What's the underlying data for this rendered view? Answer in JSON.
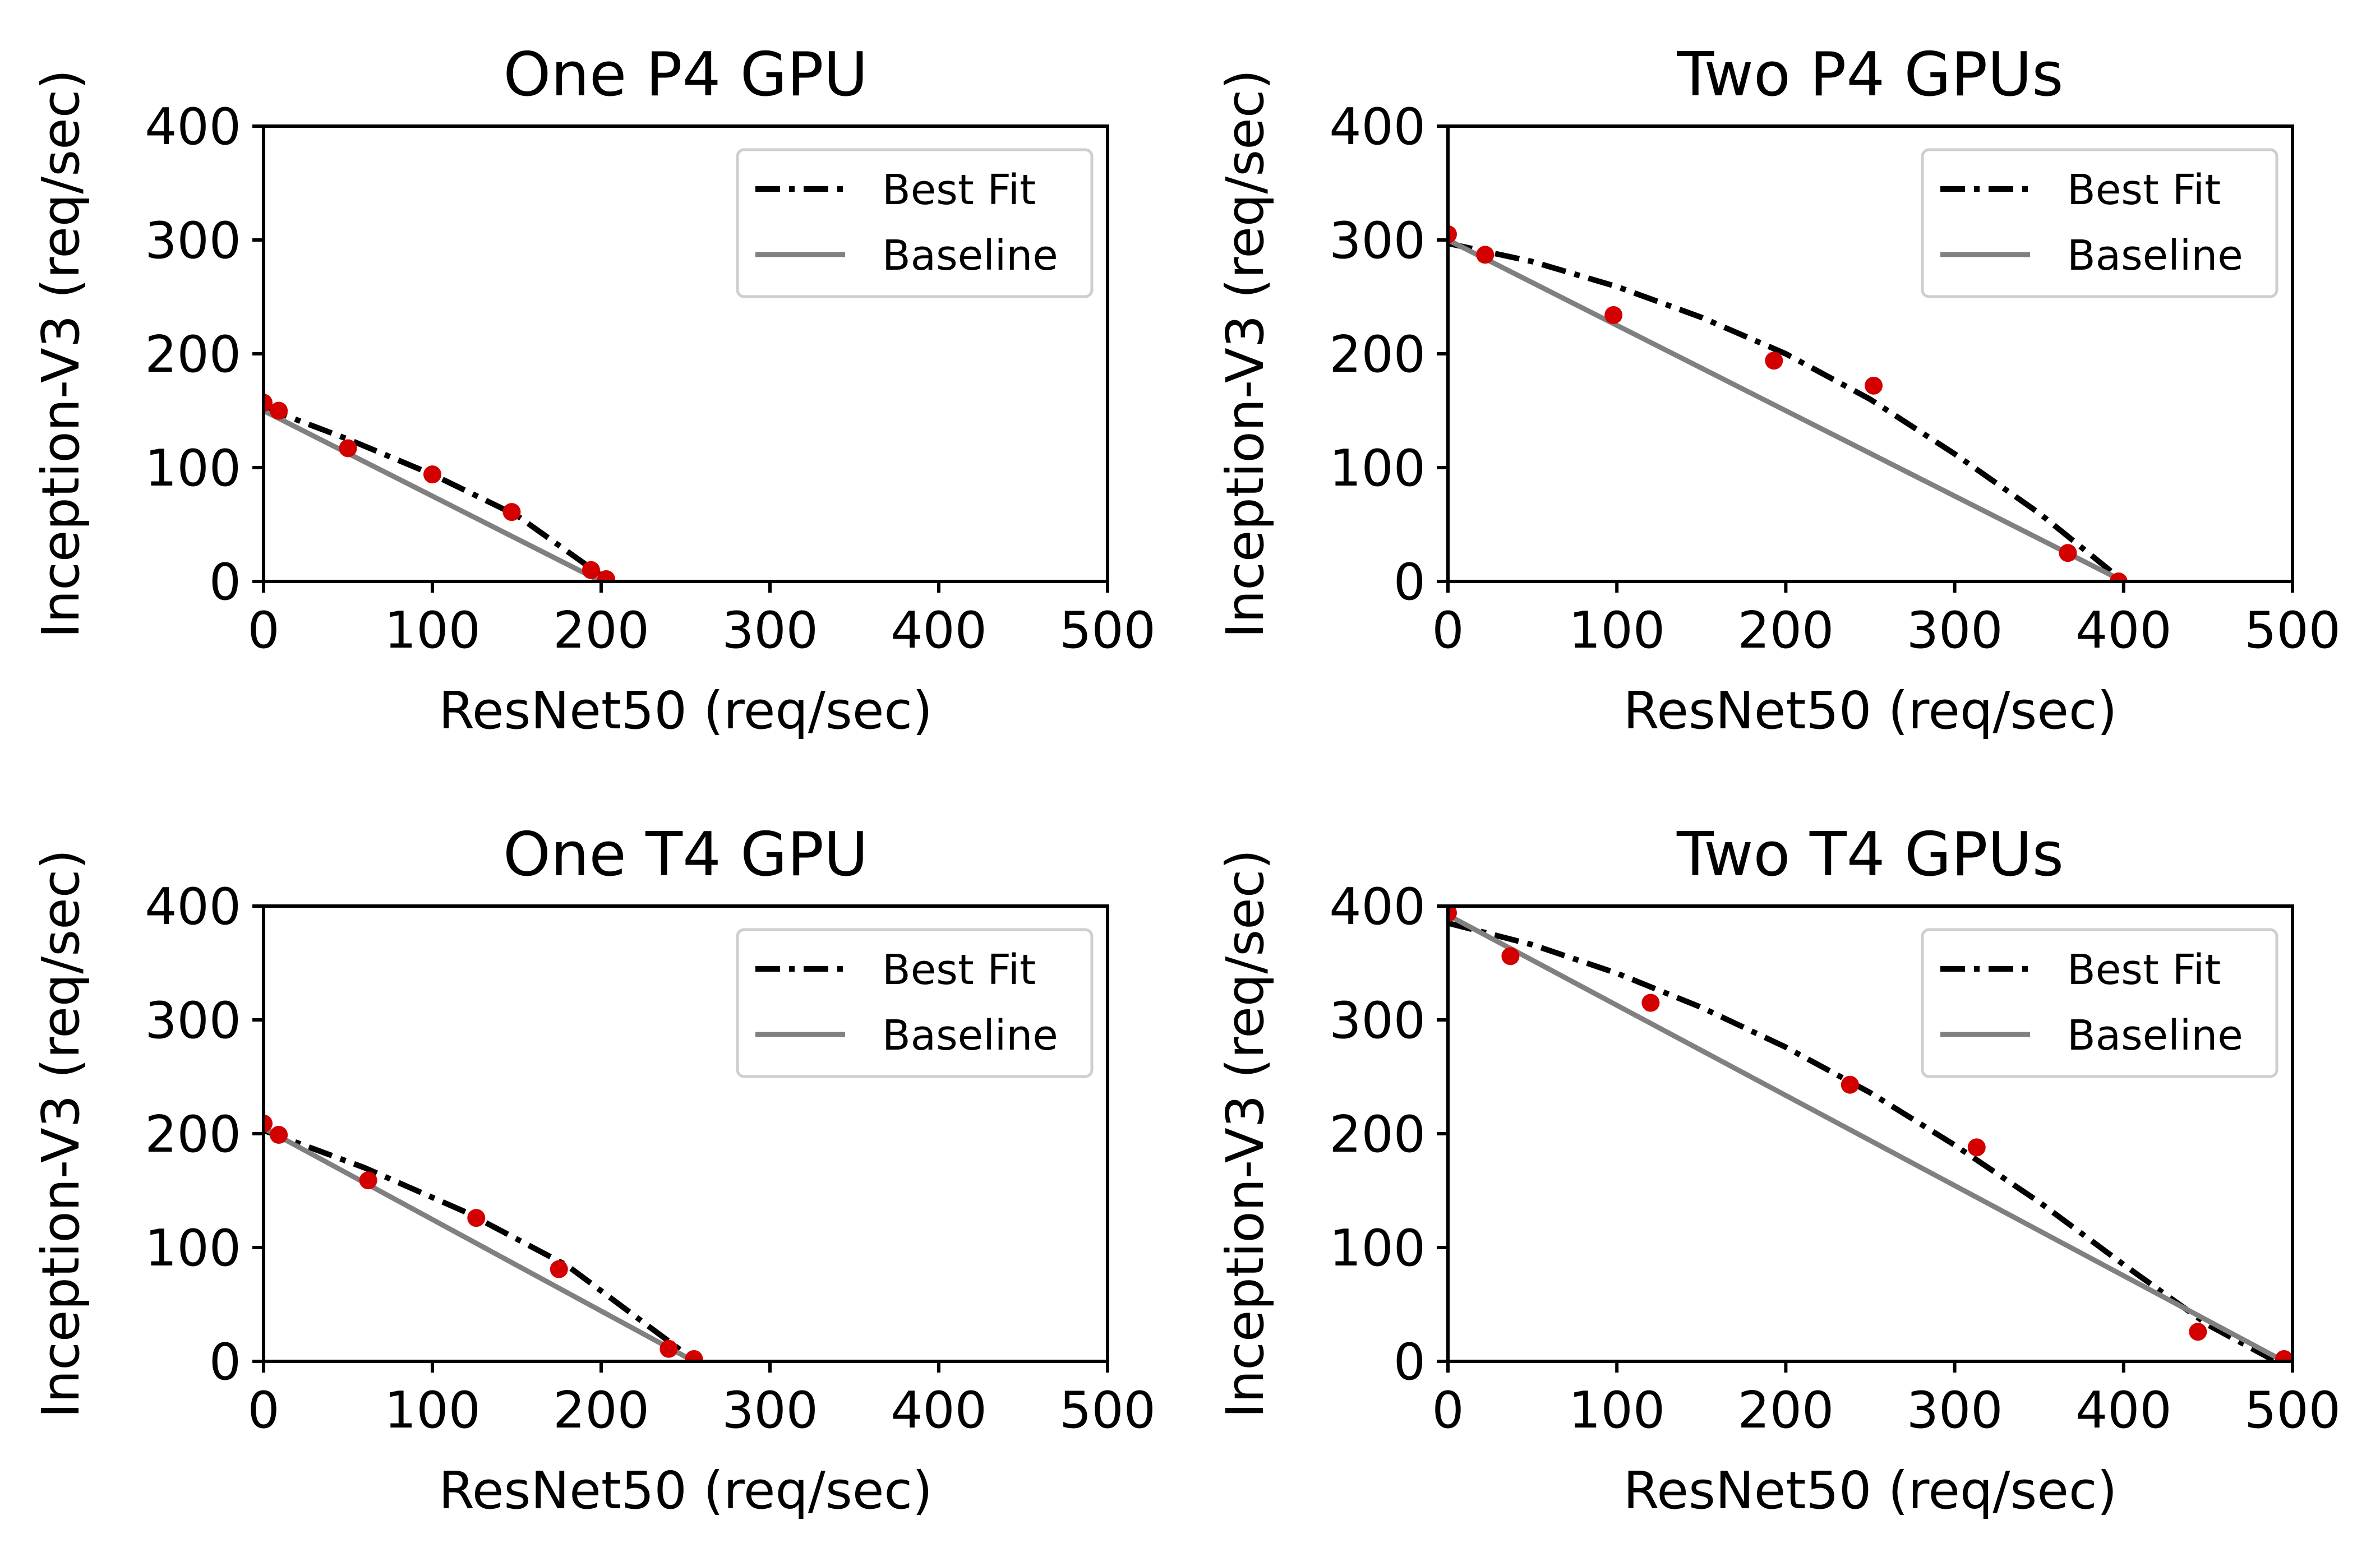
{
  "colors": {
    "best_fit": "#000000",
    "baseline": "#808080",
    "points": "#d40000"
  },
  "chart_data": [
    {
      "type": "scatter",
      "title": "One P4 GPU",
      "xlabel": "ResNet50 (req/sec)",
      "ylabel": "Inception-V3 (req/sec)",
      "xlim": [
        0,
        500
      ],
      "ylim": [
        0,
        400
      ],
      "xticks": [
        0,
        100,
        200,
        300,
        400,
        500
      ],
      "yticks": [
        0,
        100,
        200,
        300,
        400
      ],
      "legend_position": "upper right",
      "series": [
        {
          "name": "Best Fit",
          "kind": "line",
          "style": "dash-dot",
          "x": [
            0,
            50,
            100,
            150,
            205
          ],
          "y": [
            153,
            125,
            94,
            58,
            0
          ]
        },
        {
          "name": "Baseline",
          "kind": "line",
          "style": "solid",
          "x": [
            0,
            200
          ],
          "y": [
            150,
            0
          ]
        },
        {
          "kind": "points",
          "x": [
            0,
            9,
            50,
            100,
            147,
            194,
            203
          ],
          "y": [
            157,
            150,
            117,
            94,
            61,
            10,
            2
          ]
        }
      ]
    },
    {
      "type": "scatter",
      "title": "Two P4 GPUs",
      "xlabel": "ResNet50 (req/sec)",
      "ylabel": "Inception-V3 (req/sec)",
      "xlim": [
        0,
        500
      ],
      "ylim": [
        0,
        400
      ],
      "xticks": [
        0,
        100,
        200,
        300,
        400,
        500
      ],
      "yticks": [
        0,
        100,
        200,
        300,
        400
      ],
      "legend_position": "upper right",
      "series": [
        {
          "name": "Best Fit",
          "kind": "line",
          "style": "dash-dot",
          "x": [
            0,
            50,
            100,
            150,
            200,
            250,
            300,
            350,
            400
          ],
          "y": [
            297,
            281,
            259,
            232,
            200,
            160,
            112,
            60,
            0
          ]
        },
        {
          "name": "Baseline",
          "kind": "line",
          "style": "solid",
          "x": [
            0,
            400
          ],
          "y": [
            300,
            0
          ]
        },
        {
          "kind": "points",
          "x": [
            0,
            22,
            98,
            193,
            252,
            367,
            397
          ],
          "y": [
            305,
            287,
            234,
            194,
            172,
            25,
            0
          ]
        }
      ]
    },
    {
      "type": "scatter",
      "title": "One T4 GPU",
      "xlabel": "ResNet50 (req/sec)",
      "ylabel": "Inception-V3 (req/sec)",
      "xlim": [
        0,
        500
      ],
      "ylim": [
        0,
        400
      ],
      "xticks": [
        0,
        100,
        200,
        300,
        400,
        500
      ],
      "yticks": [
        0,
        100,
        200,
        300,
        400
      ],
      "legend_position": "upper right",
      "series": [
        {
          "name": "Best Fit",
          "kind": "line",
          "style": "dash-dot",
          "x": [
            0,
            60,
            120,
            180,
            256
          ],
          "y": [
            203,
            170,
            131,
            84,
            0
          ]
        },
        {
          "name": "Baseline",
          "kind": "line",
          "style": "solid",
          "x": [
            0,
            255
          ],
          "y": [
            205,
            0
          ]
        },
        {
          "kind": "points",
          "x": [
            0,
            9,
            62,
            126,
            175,
            240,
            255
          ],
          "y": [
            209,
            199,
            159,
            126,
            81,
            11,
            2
          ]
        }
      ]
    },
    {
      "type": "scatter",
      "title": "Two T4 GPUs",
      "xlabel": "ResNet50 (req/sec)",
      "ylabel": "Inception-V3 (req/sec)",
      "xlim": [
        0,
        500
      ],
      "ylim": [
        0,
        400
      ],
      "xticks": [
        0,
        100,
        200,
        300,
        400,
        500
      ],
      "yticks": [
        0,
        100,
        200,
        300,
        400
      ],
      "legend_position": "upper right",
      "series": [
        {
          "name": "Best Fit",
          "kind": "line",
          "style": "dash-dot",
          "x": [
            0,
            50,
            100,
            150,
            200,
            250,
            300,
            350,
            400,
            450,
            490
          ],
          "y": [
            385,
            366,
            341,
            311,
            276,
            236,
            190,
            140,
            85,
            32,
            0
          ]
        },
        {
          "name": "Baseline",
          "kind": "line",
          "style": "solid",
          "x": [
            0,
            495
          ],
          "y": [
            392,
            0
          ]
        },
        {
          "kind": "points",
          "x": [
            0,
            37,
            120,
            238,
            313,
            444,
            495
          ],
          "y": [
            394,
            356,
            315,
            243,
            188,
            26,
            2
          ]
        }
      ]
    }
  ]
}
